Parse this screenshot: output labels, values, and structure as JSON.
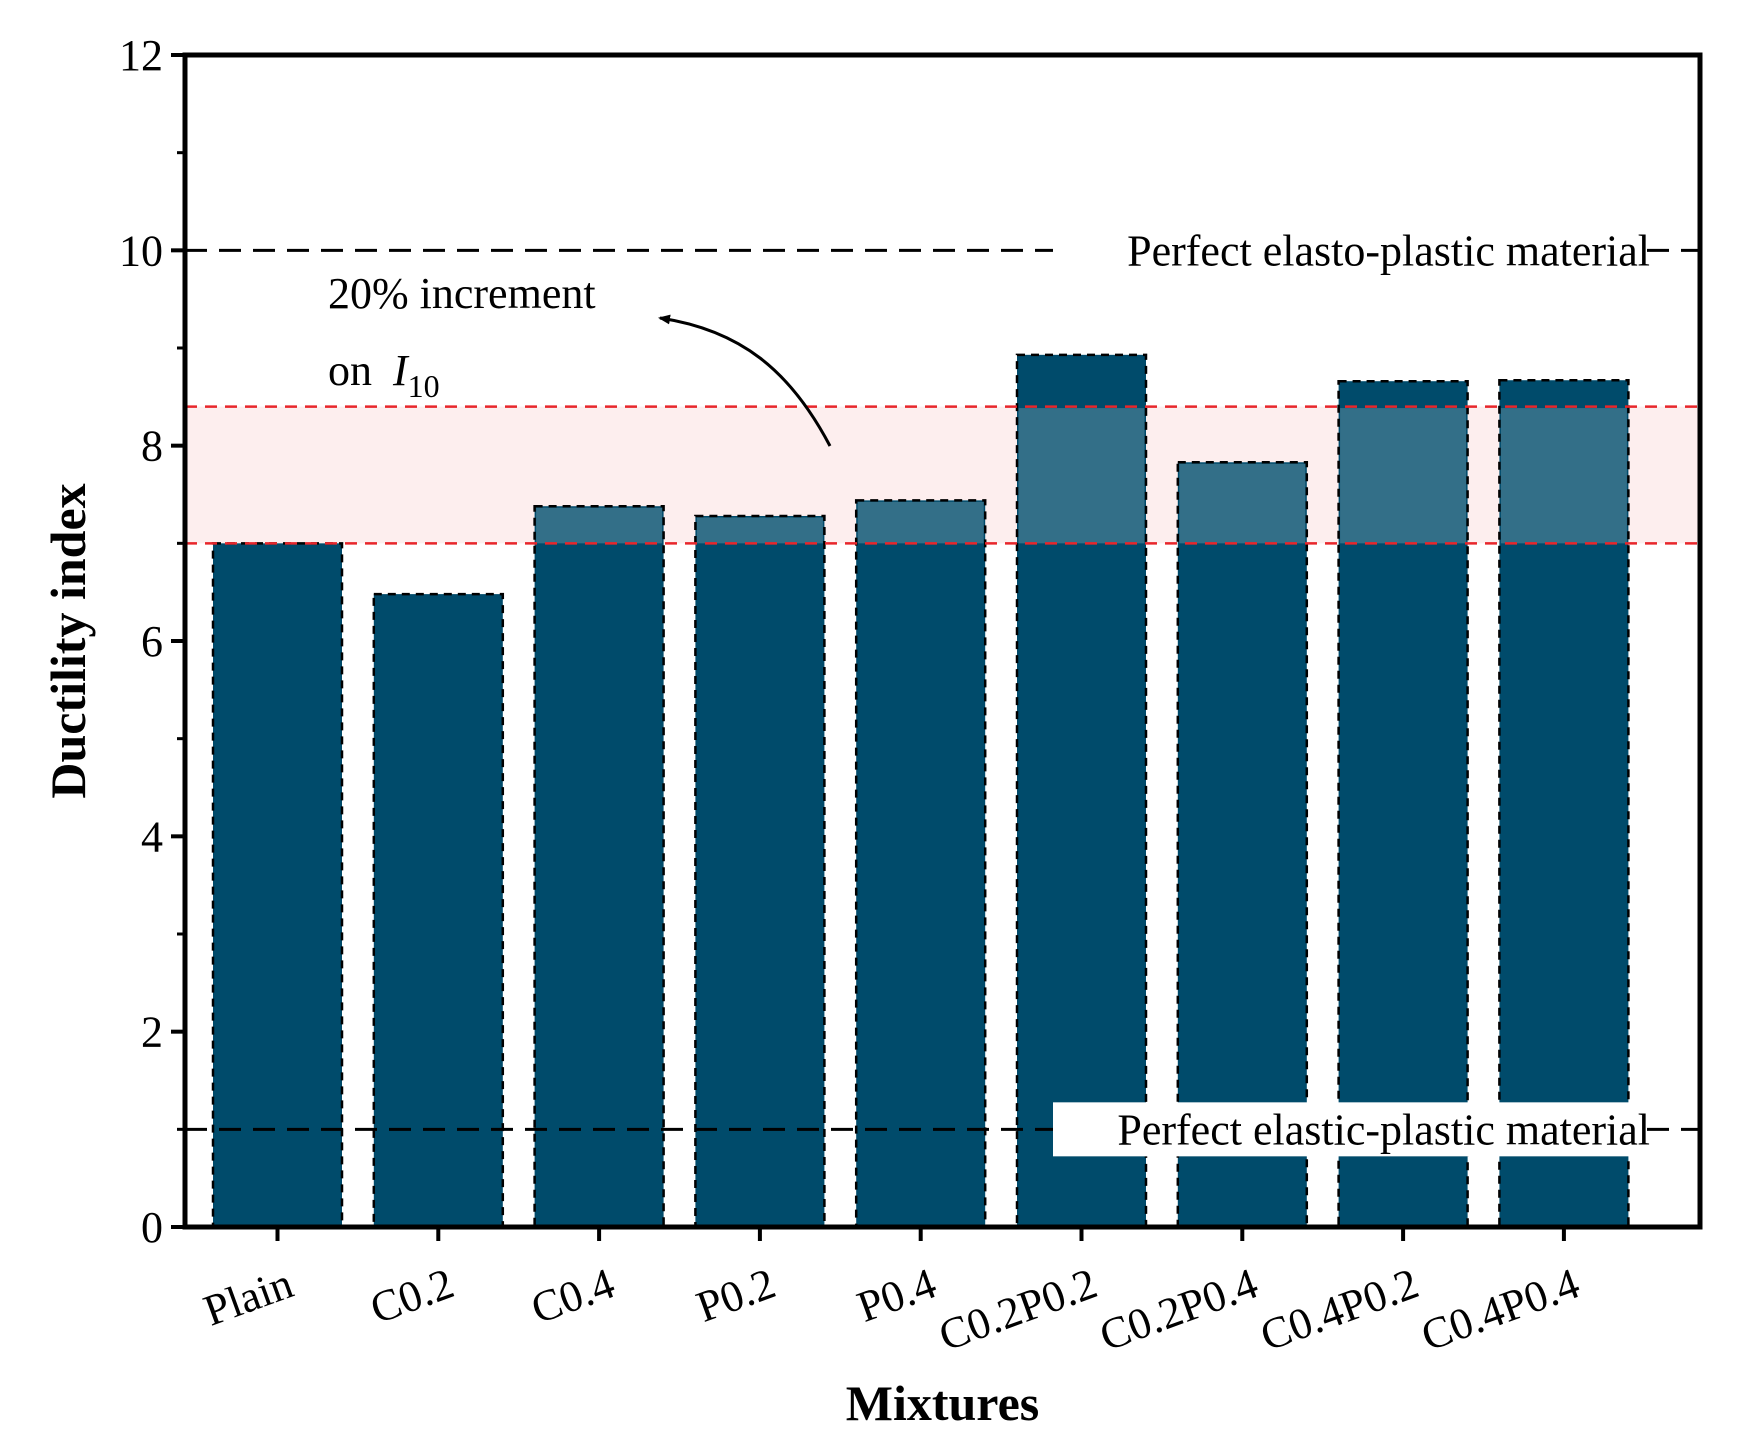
{
  "chart_data": {
    "type": "bar",
    "title": "",
    "xlabel": "Mixtures",
    "ylabel": "Ductility index",
    "ylim": [
      0,
      12
    ],
    "yticks": [
      0,
      2,
      4,
      6,
      8,
      10,
      12
    ],
    "categories": [
      "Plain",
      "C0.2",
      "C0.4",
      "P0.2",
      "P0.4",
      "C0.2P0.2",
      "C0.2P0.4",
      "C0.4P0.2",
      "C0.4P0.4"
    ],
    "values": [
      7.0,
      6.48,
      7.38,
      7.28,
      7.44,
      8.93,
      7.83,
      8.66,
      8.67
    ],
    "bar_color": "#004b6b",
    "reference_lines": [
      {
        "value": 10,
        "label": "Perfect elasto-plastic material",
        "color": "#000000"
      },
      {
        "value": 1,
        "label": "Perfect elastic-plastic material",
        "color": "#000000"
      }
    ],
    "band": {
      "from": 7.0,
      "to": 8.4,
      "line_color": "#e8262b",
      "fill_color": "#fdeeee"
    },
    "annotation": {
      "line1": "20% increment",
      "line2_prefix": "on ",
      "symbol": "I",
      "subscript": "10"
    }
  }
}
